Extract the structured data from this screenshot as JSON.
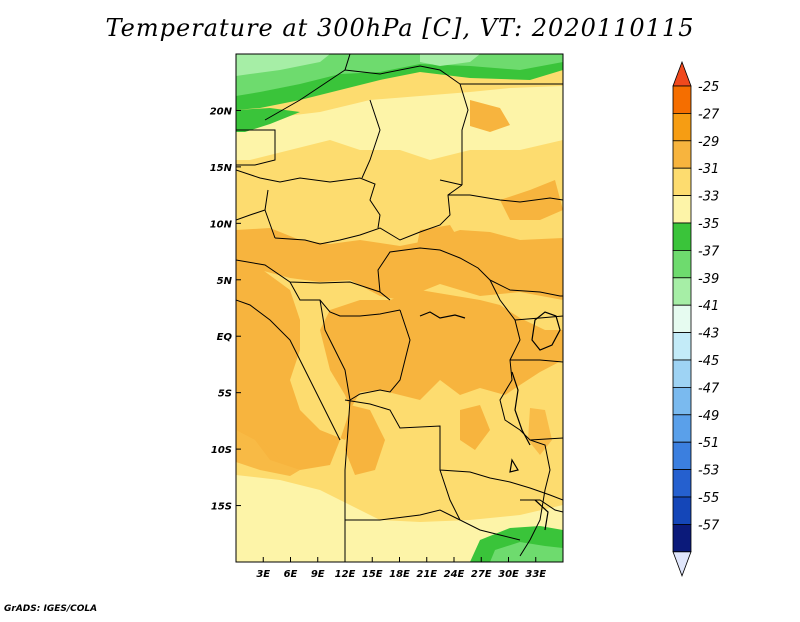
{
  "title": "Temperature at 300hPa [C], VT: 2020110115",
  "credit": "GrADS: IGES/COLA",
  "map": {
    "lon_range": [
      0,
      36
    ],
    "lat_range": [
      -20,
      25
    ],
    "x_ticks": [
      "3E",
      "6E",
      "9E",
      "12E",
      "15E",
      "18E",
      "21E",
      "24E",
      "27E",
      "30E",
      "33E"
    ],
    "y_ticks": [
      "20N",
      "15N",
      "10N",
      "5N",
      "EQ",
      "5S",
      "10S",
      "15S"
    ]
  },
  "colorbar": {
    "labels": [
      "-25",
      "-27",
      "-29",
      "-31",
      "-33",
      "-35",
      "-37",
      "-39",
      "-41",
      "-43",
      "-45",
      "-47",
      "-49",
      "-51",
      "-53",
      "-55",
      "-57"
    ],
    "colors": [
      "#f0491d",
      "#f56e00",
      "#f69d13",
      "#f7b43e",
      "#fddc6f",
      "#fdf4a8",
      "#3ac43a",
      "#6edb6e",
      "#a6eea6",
      "#e6fbf0",
      "#c3ebf8",
      "#9ed3f4",
      "#7abaef",
      "#5aa0ea",
      "#3b7fdf",
      "#2560cf",
      "#1446b8",
      "#0b1a7a"
    ],
    "top_arrow_color": "#f0491d",
    "bottom_arrow_color": "#e0e6fb"
  }
}
